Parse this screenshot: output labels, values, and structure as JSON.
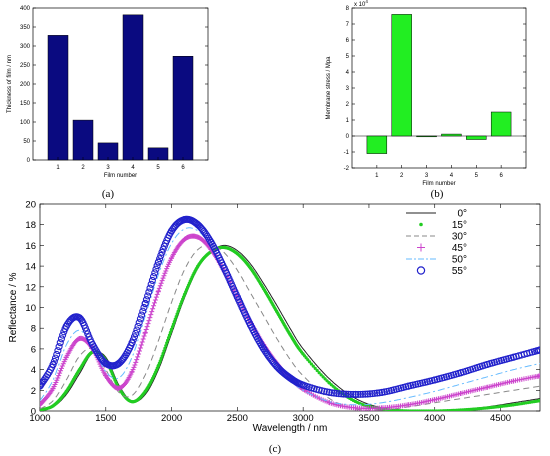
{
  "chart_data": [
    {
      "panel": "(a)",
      "type": "bar",
      "categories": [
        "1",
        "2",
        "3",
        "4",
        "5",
        "6"
      ],
      "values": [
        328,
        105,
        45,
        382,
        32,
        273
      ],
      "xlabel": "Film number",
      "ylabel": "Thickness of film / nm",
      "ylim": [
        0,
        400
      ],
      "yticks": [
        0,
        50,
        100,
        150,
        200,
        250,
        300,
        350,
        400
      ],
      "color": "#0a0a80"
    },
    {
      "panel": "(b)",
      "type": "bar",
      "categories": [
        "1",
        "2",
        "3",
        "4",
        "5",
        "6"
      ],
      "values": [
        -1.1,
        7.6,
        -0.05,
        0.12,
        -0.22,
        1.5
      ],
      "xlabel": "Film number",
      "ylabel": "Membrane stress / Mpa",
      "multiplier": "x 10",
      "multiplier_exp": "4",
      "ylim": [
        -2,
        8
      ],
      "yticks": [
        -2,
        -1,
        0,
        1,
        2,
        3,
        4,
        5,
        6,
        7,
        8
      ],
      "color": "#22ee22"
    },
    {
      "panel": "(c)",
      "type": "line",
      "xlabel": "Wavelength / nm",
      "ylabel": "Reflectance / %",
      "xlim": [
        1000,
        4800
      ],
      "ylim": [
        0,
        20
      ],
      "xticks": [
        1000,
        1500,
        2000,
        2500,
        3000,
        3500,
        4000,
        4500
      ],
      "yticks": [
        0,
        2,
        4,
        6,
        8,
        10,
        12,
        14,
        16,
        18,
        20
      ],
      "legend_position": "top-right",
      "series": [
        {
          "name": "0°",
          "color": "#222222",
          "style": "solid",
          "x": [
            1000,
            1100,
            1200,
            1300,
            1400,
            1500,
            1600,
            1700,
            1800,
            1900,
            2000,
            2100,
            2200,
            2300,
            2400,
            2500,
            2600,
            2700,
            2800,
            2900,
            3000,
            3200,
            3400,
            3600,
            3800,
            4000,
            4200,
            4400,
            4600,
            4800
          ],
          "y": [
            0.1,
            0.4,
            1.6,
            3.6,
            5.6,
            5.2,
            2.5,
            0.9,
            1.6,
            4.0,
            7.5,
            11.0,
            13.8,
            15.4,
            16.0,
            15.5,
            14.2,
            12.3,
            10.2,
            8.0,
            6.0,
            3.1,
            1.2,
            0.3,
            0.05,
            0.0,
            0.15,
            0.4,
            0.8,
            1.2
          ]
        },
        {
          "name": "15°",
          "color": "#22cc22",
          "style": "dots",
          "x": [
            1000,
            1100,
            1200,
            1300,
            1400,
            1500,
            1600,
            1700,
            1800,
            1900,
            2000,
            2100,
            2200,
            2300,
            2400,
            2500,
            2600,
            2700,
            2800,
            2900,
            3000,
            3200,
            3400,
            3600,
            3800,
            4000,
            4200,
            4400,
            4600,
            4800
          ],
          "y": [
            0.1,
            0.5,
            1.9,
            4.0,
            5.7,
            4.9,
            2.2,
            0.9,
            1.9,
            4.4,
            7.9,
            11.3,
            14.0,
            15.4,
            15.8,
            15.2,
            13.8,
            11.8,
            9.6,
            7.4,
            5.5,
            2.7,
            0.9,
            0.2,
            0.0,
            0.0,
            0.1,
            0.3,
            0.6,
            1.0
          ]
        },
        {
          "name": "30°",
          "color": "#888888",
          "style": "dashed",
          "x": [
            1000,
            1100,
            1200,
            1300,
            1400,
            1500,
            1600,
            1700,
            1800,
            1900,
            2000,
            2100,
            2200,
            2300,
            2400,
            2500,
            2600,
            2700,
            2800,
            2900,
            3000,
            3200,
            3400,
            3600,
            3800,
            4000,
            4200,
            4400,
            4600,
            4800
          ],
          "y": [
            0.2,
            1.0,
            3.0,
            5.3,
            6.0,
            4.0,
            1.8,
            1.5,
            3.5,
            6.8,
            10.5,
            13.7,
            15.6,
            16.0,
            15.3,
            13.6,
            11.4,
            9.2,
            7.0,
            5.0,
            3.4,
            1.2,
            0.2,
            0.1,
            0.4,
            0.8,
            1.2,
            1.6,
            2.0,
            2.4
          ]
        },
        {
          "name": "45°",
          "color": "#cc44cc",
          "style": "plus",
          "x": [
            1000,
            1100,
            1200,
            1300,
            1400,
            1500,
            1600,
            1700,
            1800,
            1900,
            2000,
            2100,
            2200,
            2300,
            2400,
            2500,
            2600,
            2700,
            2800,
            2900,
            3000,
            3200,
            3400,
            3600,
            3800,
            4000,
            4200,
            4400,
            4600,
            4800
          ],
          "y": [
            0.6,
            2.2,
            5.2,
            7.0,
            6.0,
            3.4,
            2.2,
            3.8,
            7.6,
            11.6,
            14.8,
            16.6,
            16.8,
            15.6,
            13.5,
            11.0,
            8.6,
            6.4,
            4.6,
            3.2,
            2.1,
            0.8,
            0.3,
            0.3,
            0.6,
            1.1,
            1.7,
            2.3,
            2.9,
            3.4
          ]
        },
        {
          "name": "50°",
          "color": "#66bbff",
          "style": "dashdot",
          "x": [
            1000,
            1100,
            1200,
            1300,
            1400,
            1500,
            1600,
            1700,
            1800,
            1900,
            2000,
            2100,
            2200,
            2300,
            2400,
            2500,
            2600,
            2700,
            2800,
            2900,
            3000,
            3200,
            3400,
            3600,
            3800,
            4000,
            4200,
            4400,
            4600,
            4800
          ],
          "y": [
            1.0,
            3.0,
            6.4,
            7.8,
            6.2,
            3.8,
            3.2,
            5.2,
            9.2,
            13.2,
            16.2,
            17.6,
            17.4,
            15.9,
            13.6,
            11.0,
            8.4,
            6.1,
            4.3,
            3.0,
            2.0,
            0.9,
            0.6,
            0.8,
            1.3,
            1.9,
            2.6,
            3.3,
            4.0,
            4.6
          ]
        },
        {
          "name": "55°",
          "color": "#2222cc",
          "style": "circle",
          "x": [
            1000,
            1100,
            1200,
            1300,
            1400,
            1500,
            1600,
            1700,
            1800,
            1900,
            2000,
            2100,
            2200,
            2300,
            2400,
            2500,
            2600,
            2700,
            2800,
            2900,
            3000,
            3200,
            3400,
            3600,
            3800,
            4000,
            4200,
            4400,
            4600,
            4800
          ],
          "y": [
            2.4,
            4.5,
            8.2,
            9.0,
            6.4,
            4.6,
            4.6,
            6.6,
            10.4,
            14.4,
            17.4,
            18.5,
            18.0,
            16.3,
            13.8,
            11.0,
            8.3,
            6.0,
            4.3,
            3.2,
            2.5,
            1.8,
            1.6,
            1.8,
            2.4,
            3.0,
            3.7,
            4.5,
            5.2,
            5.9
          ]
        }
      ]
    }
  ]
}
